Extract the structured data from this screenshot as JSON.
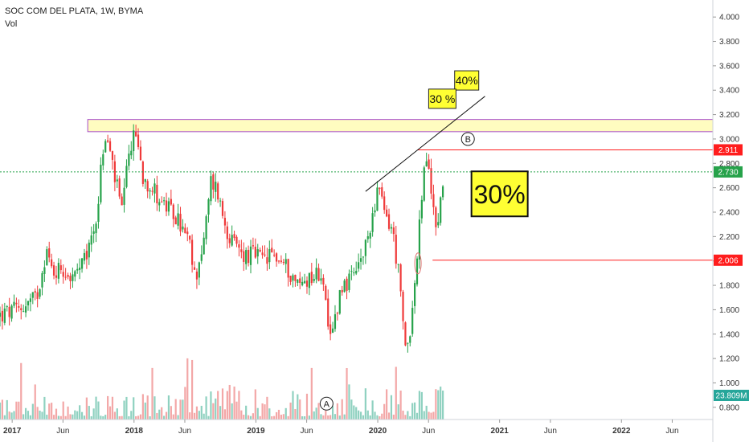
{
  "header": {
    "title": "SOC COM DEL PLATA, 1W, BYMA",
    "indicator": "Vol"
  },
  "chart_data": {
    "type": "candlestick",
    "y_axis": {
      "ticks": [
        "4.000",
        "3.800",
        "3.600",
        "3.400",
        "3.200",
        "3.000",
        "2.800",
        "2.600",
        "2.400",
        "2.200",
        "2.000",
        "1.800",
        "1.600",
        "1.400",
        "1.200",
        "1.000",
        "0.800"
      ],
      "ylim": [
        0.7,
        4.1
      ]
    },
    "x_axis": {
      "ticks": [
        {
          "label": "2017",
          "t": 0.0,
          "bold": true
        },
        {
          "label": "Jun",
          "t": 0.4167,
          "bold": false
        },
        {
          "label": "2018",
          "t": 1.0,
          "bold": true
        },
        {
          "label": "Jun",
          "t": 1.4167,
          "bold": false
        },
        {
          "label": "2019",
          "t": 2.0,
          "bold": true
        },
        {
          "label": "Jun",
          "t": 2.4167,
          "bold": false
        },
        {
          "label": "2020",
          "t": 3.0,
          "bold": true
        },
        {
          "label": "Jun",
          "t": 3.4167,
          "bold": false
        },
        {
          "label": "2021",
          "t": 4.0,
          "bold": true
        },
        {
          "label": "Jun",
          "t": 4.4167,
          "bold": false
        },
        {
          "label": "2022",
          "t": 5.0,
          "bold": true
        },
        {
          "label": "Jun",
          "t": 5.4167,
          "bold": false
        }
      ],
      "xlim": [
        -0.1,
        5.75
      ]
    },
    "price_path": [
      [
        -0.1,
        1.55
      ],
      [
        0.05,
        1.6
      ],
      [
        0.2,
        1.7
      ],
      [
        0.28,
        2.1
      ],
      [
        0.33,
        1.9
      ],
      [
        0.4,
        1.95
      ],
      [
        0.5,
        1.85
      ],
      [
        0.6,
        2.0
      ],
      [
        0.7,
        2.4
      ],
      [
        0.74,
        2.9
      ],
      [
        0.78,
        3.0
      ],
      [
        0.83,
        2.75
      ],
      [
        0.9,
        2.4
      ],
      [
        0.97,
        2.95
      ],
      [
        1.02,
        3.05
      ],
      [
        1.07,
        2.7
      ],
      [
        1.15,
        2.6
      ],
      [
        1.25,
        2.45
      ],
      [
        1.35,
        2.35
      ],
      [
        1.45,
        2.15
      ],
      [
        1.5,
        1.85
      ],
      [
        1.58,
        2.2
      ],
      [
        1.63,
        2.65
      ],
      [
        1.68,
        2.6
      ],
      [
        1.72,
        2.4
      ],
      [
        1.8,
        2.15
      ],
      [
        1.9,
        2.05
      ],
      [
        2.0,
        2.05
      ],
      [
        2.05,
        2.0
      ],
      [
        2.15,
        2.05
      ],
      [
        2.25,
        1.95
      ],
      [
        2.35,
        1.8
      ],
      [
        2.45,
        1.88
      ],
      [
        2.55,
        1.9
      ],
      [
        2.6,
        1.3
      ],
      [
        2.63,
        1.45
      ],
      [
        2.7,
        1.8
      ],
      [
        2.8,
        1.85
      ],
      [
        2.9,
        2.1
      ],
      [
        2.97,
        2.45
      ],
      [
        3.0,
        2.6
      ],
      [
        3.05,
        2.4
      ],
      [
        3.12,
        2.25
      ],
      [
        3.17,
        1.9
      ],
      [
        3.2,
        1.55
      ],
      [
        3.23,
        1.25
      ],
      [
        3.28,
        1.55
      ],
      [
        3.33,
        2.1
      ],
      [
        3.37,
        2.65
      ],
      [
        3.4,
        2.85
      ],
      [
        3.44,
        2.55
      ],
      [
        3.49,
        2.25
      ],
      [
        3.54,
        2.73
      ]
    ],
    "series": [
      {
        "name": "Vol"
      }
    ],
    "price_line": {
      "value": 2.73,
      "label": "2.730",
      "color": "#26a24a"
    },
    "resistance_line": {
      "value": 2.911,
      "label": "2.911",
      "color": "#ff1d1d",
      "t_start": 3.33
    },
    "support_line": {
      "value": 2.006,
      "label": "2.006",
      "color": "#ff1d1d",
      "t_start": 3.45
    },
    "resistance_zone": {
      "from": 3.06,
      "to": 3.16,
      "t_start": 0.62
    },
    "trendline": {
      "t1": 2.9,
      "v1": 2.57,
      "t2": 3.88,
      "v2": 3.35
    },
    "volume_label": {
      "label": "23.809M",
      "color": "#26a69a"
    },
    "annotations": [
      {
        "kind": "box",
        "text": "40%",
        "t": 3.73,
        "v": 3.48
      },
      {
        "kind": "box",
        "text": "30 %",
        "t": 3.53,
        "v": 3.33
      },
      {
        "kind": "big-box",
        "text": "30%",
        "t": 4.0,
        "v": 2.55
      },
      {
        "kind": "circle",
        "text": "B",
        "t": 3.74,
        "v": 3.0
      },
      {
        "kind": "circle",
        "text": "A",
        "t": 2.58,
        "v": 0.83
      }
    ],
    "grid": false,
    "colors": {
      "up": "#26a24a",
      "down": "#ef3a3a",
      "vol_up": "#8fd1c0",
      "vol_down": "#f3a7a7",
      "zone_fill": "#fffcc0",
      "zone_border": "#a64ac9",
      "box_fill": "#ffff33"
    }
  }
}
